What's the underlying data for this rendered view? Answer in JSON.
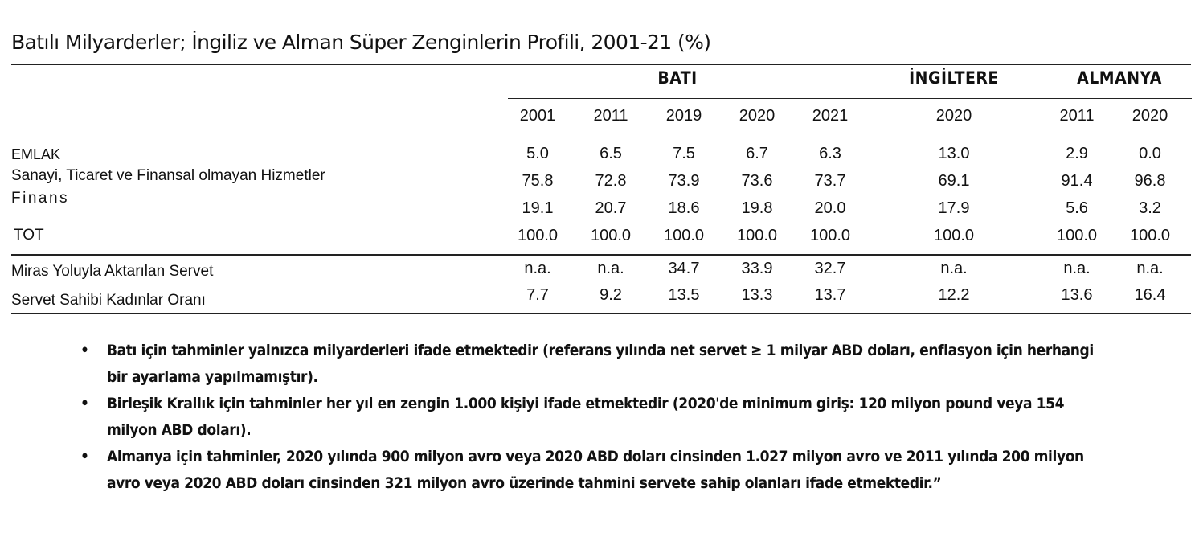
{
  "title": "Batılı Milyarderler; İngiliz ve Alman Süper Zenginlerin Profili, 2001-21 (%)",
  "groups": [
    "BATI",
    "İNGİLTERE",
    "ALMANYA"
  ],
  "years": [
    "2001",
    "2011",
    "2019",
    "2020",
    "2021",
    "2020",
    "2011",
    "2020"
  ],
  "rows": [
    {
      "label": "EMLAK",
      "values": [
        "5.0",
        "6.5",
        "7.5",
        "6.7",
        "6.3",
        "13.0",
        "2.9",
        "0.0"
      ]
    },
    {
      "label": "Sanayi, Ticaret ve Finansal olmayan Hizmetler",
      "values": [
        "75.8",
        "72.8",
        "73.9",
        "73.6",
        "73.7",
        "69.1",
        "91.4",
        "96.8"
      ]
    },
    {
      "label": "Finans",
      "values": [
        "19.1",
        "20.7",
        "18.6",
        "19.8",
        "20.0",
        "17.9",
        "5.6",
        "3.2"
      ]
    },
    {
      "label": "TOT",
      "values": [
        "100.0",
        "100.0",
        "100.0",
        "100.0",
        "100.0",
        "100.0",
        "100.0",
        "100.0"
      ]
    },
    {
      "label": "Miras Yoluyla Aktarılan Servet",
      "values": [
        "n.a.",
        "n.a.",
        "34.7",
        "33.9",
        "32.7",
        "n.a.",
        "n.a.",
        "n.a."
      ]
    },
    {
      "label": "Servet Sahibi Kadınlar Oranı",
      "values": [
        "7.7",
        "9.2",
        "13.5",
        "13.3",
        "13.7",
        "12.2",
        "13.6",
        "16.4"
      ]
    }
  ],
  "bullet_symbol": "•",
  "notes": [
    "Batı için tahminler yalnızca milyarderleri ifade etmektedir (referans yılında net servet ≥ 1 milyar ABD doları, enflasyon için herhangi bir ayarlama yapılmamıştır).",
    "Birleşik Krallık için tahminler her yıl en zengin 1.000 kişiyi ifade etmektedir (2020'de minimum giriş: 120 milyon pound veya 154 milyon ABD doları).",
    "Almanya için tahminler, 2020 yılında 900 milyon avro veya 2020 ABD doları cinsinden 1.027 milyon avro ve 2011 yılında 200 milyon avro veya 2020 ABD doları cinsinden 321 milyon avro üzerinde tahmini servete sahip olanları ifade etmektedir.”"
  ]
}
